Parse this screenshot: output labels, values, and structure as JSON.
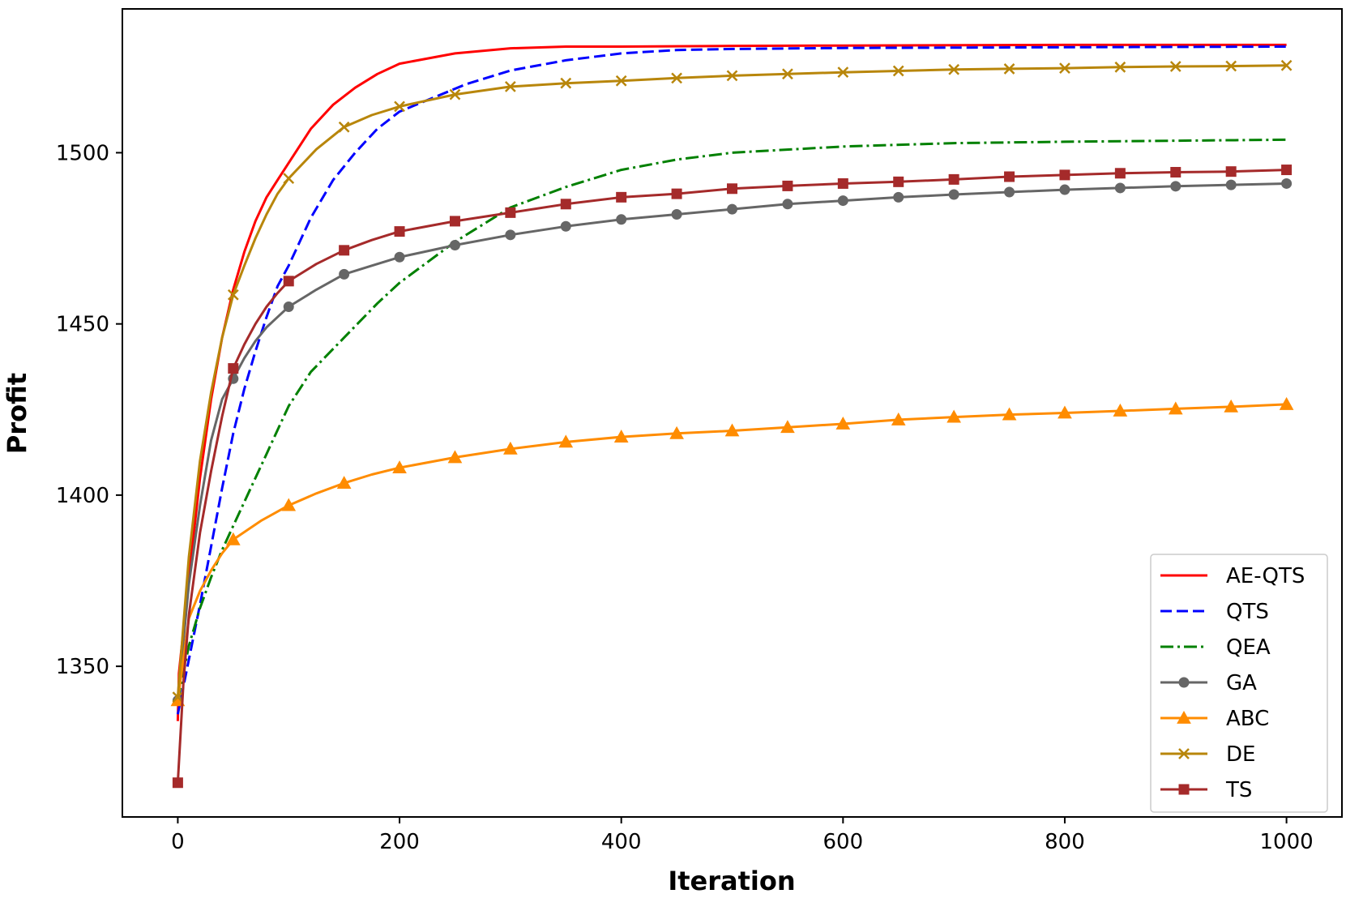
{
  "chart_data": {
    "type": "line",
    "xlabel": "Iteration",
    "ylabel": "Profit",
    "xlim": [
      -50,
      1050
    ],
    "ylim": [
      1306,
      1542
    ],
    "xticks": [
      0,
      200,
      400,
      600,
      800,
      1000
    ],
    "yticks": [
      1350,
      1400,
      1450,
      1500
    ],
    "grid": false,
    "legend_position": "lower-right",
    "series": [
      {
        "name": "AE-QTS",
        "color": "#ff0000",
        "dash": "solid",
        "marker": "none",
        "x": [
          0,
          1,
          10,
          20,
          30,
          40,
          50,
          60,
          70,
          80,
          90,
          100,
          120,
          140,
          160,
          180,
          200,
          250,
          300,
          350,
          400,
          500,
          600,
          800,
          1000
        ],
        "y": [
          1334,
          1348,
          1376,
          1405,
          1428,
          1446,
          1460,
          1471,
          1480,
          1487,
          1492,
          1497,
          1507,
          1514,
          1519,
          1523,
          1526,
          1529,
          1530.5,
          1531,
          1531,
          1531.2,
          1531.3,
          1531.5,
          1531.5
        ]
      },
      {
        "name": "QTS",
        "color": "#0000ff",
        "dash": "dashed",
        "marker": "none",
        "x": [
          0,
          10,
          20,
          30,
          40,
          50,
          60,
          70,
          80,
          90,
          100,
          120,
          140,
          160,
          180,
          200,
          230,
          260,
          300,
          350,
          400,
          450,
          500,
          600,
          800,
          1000
        ],
        "y": [
          1336,
          1352,
          1368,
          1385,
          1402,
          1418,
          1431,
          1442,
          1452,
          1461,
          1467,
          1481,
          1492,
          1500,
          1507,
          1512,
          1516,
          1520,
          1524,
          1527,
          1529,
          1530,
          1530.3,
          1530.6,
          1530.8,
          1531
        ]
      },
      {
        "name": "QEA",
        "color": "#008000",
        "dash": "dashdot",
        "marker": "none",
        "x": [
          0,
          10,
          20,
          30,
          40,
          50,
          60,
          70,
          80,
          90,
          100,
          120,
          150,
          180,
          200,
          250,
          300,
          350,
          400,
          450,
          500,
          600,
          700,
          800,
          900,
          1000
        ],
        "y": [
          1340,
          1356,
          1367,
          1376,
          1384,
          1391,
          1398,
          1405,
          1412,
          1419,
          1426,
          1436,
          1446,
          1456,
          1462,
          1474,
          1484,
          1490,
          1495,
          1498,
          1500,
          1501.8,
          1502.8,
          1503.2,
          1503.5,
          1503.8
        ]
      },
      {
        "name": "GA",
        "color": "#666666",
        "dash": "solid",
        "marker": "circle",
        "x": [
          0,
          10,
          20,
          30,
          40,
          50,
          60,
          70,
          80,
          90,
          100,
          125,
          150,
          175,
          200,
          250,
          300,
          350,
          400,
          450,
          500,
          550,
          600,
          650,
          700,
          750,
          800,
          850,
          900,
          950,
          1000
        ],
        "y": [
          1340,
          1374,
          1397,
          1416,
          1428,
          1434,
          1440,
          1445,
          1449,
          1452,
          1455,
          1460,
          1464.5,
          1467,
          1469.5,
          1473,
          1476,
          1478.5,
          1480.5,
          1482,
          1483.5,
          1485,
          1486,
          1487,
          1487.8,
          1488.5,
          1489.2,
          1489.7,
          1490.2,
          1490.6,
          1491
        ]
      },
      {
        "name": "ABC",
        "color": "#ff8c00",
        "dash": "solid",
        "marker": "triangle",
        "x": [
          0,
          10,
          20,
          30,
          40,
          50,
          75,
          100,
          125,
          150,
          175,
          200,
          250,
          300,
          350,
          400,
          450,
          500,
          550,
          600,
          650,
          700,
          750,
          800,
          850,
          900,
          950,
          1000
        ],
        "y": [
          1340,
          1364,
          1372,
          1378,
          1383,
          1387,
          1392.5,
          1397,
          1400.5,
          1403.5,
          1406,
          1408,
          1411,
          1413.5,
          1415.5,
          1417,
          1418,
          1418.8,
          1419.8,
          1420.8,
          1422,
          1422.8,
          1423.5,
          1424,
          1424.6,
          1425.2,
          1425.8,
          1426.5
        ]
      },
      {
        "name": "DE",
        "color": "#b8860b",
        "dash": "solid",
        "marker": "x",
        "x": [
          0,
          5,
          10,
          20,
          30,
          40,
          50,
          60,
          70,
          80,
          90,
          100,
          125,
          150,
          175,
          200,
          250,
          300,
          350,
          400,
          450,
          500,
          550,
          600,
          650,
          700,
          750,
          800,
          850,
          900,
          950,
          1000
        ],
        "y": [
          1341,
          1362,
          1382,
          1410,
          1430,
          1446,
          1458.5,
          1467,
          1475,
          1482,
          1488,
          1492.5,
          1501,
          1507.5,
          1511,
          1513.5,
          1517,
          1519.3,
          1520.3,
          1521,
          1521.8,
          1522.5,
          1523,
          1523.5,
          1523.9,
          1524.3,
          1524.5,
          1524.7,
          1525,
          1525.2,
          1525.3,
          1525.5
        ]
      },
      {
        "name": "TS",
        "color": "#a52a2a",
        "dash": "solid",
        "marker": "square",
        "x": [
          0,
          5,
          10,
          20,
          30,
          40,
          50,
          60,
          70,
          80,
          90,
          100,
          125,
          150,
          175,
          200,
          250,
          300,
          350,
          400,
          450,
          500,
          550,
          600,
          650,
          700,
          750,
          800,
          850,
          900,
          950,
          1000
        ],
        "y": [
          1316,
          1345,
          1365,
          1389,
          1407,
          1423,
          1437,
          1444,
          1450,
          1455,
          1459,
          1462.5,
          1467.5,
          1471.5,
          1474.5,
          1477,
          1480,
          1482.5,
          1485,
          1487,
          1488,
          1489.5,
          1490.3,
          1491,
          1491.5,
          1492.2,
          1493,
          1493.5,
          1494,
          1494.3,
          1494.5,
          1495
        ]
      }
    ]
  }
}
